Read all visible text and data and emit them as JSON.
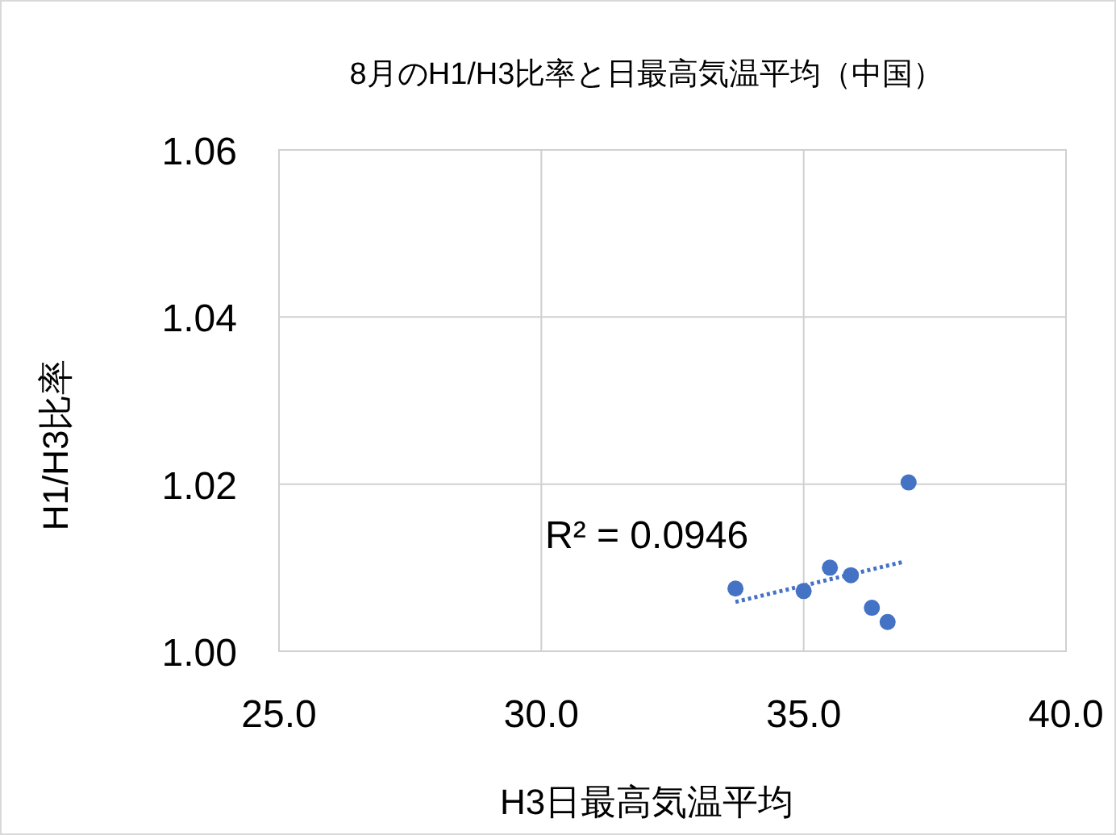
{
  "chart_data": {
    "type": "scatter",
    "title": "8月のH1/H3比率と日最高気温平均（中国）",
    "xlabel": "H3日最高気温平均",
    "ylabel": "H1/H3比率",
    "series": [
      {
        "type": "scatter",
        "color": "#4472c4",
        "marker": "circle",
        "x": [
          33.7,
          35.0,
          35.5,
          35.9,
          36.3,
          36.6,
          37.0
        ],
        "values": [
          1.0075,
          1.0072,
          1.01,
          1.0091,
          1.0052,
          1.0035,
          1.0202
        ]
      },
      {
        "type": "line",
        "color": "#4472c4",
        "line_style": "dotted",
        "marker": "none",
        "x": [
          33.7,
          36.9
        ],
        "values": [
          1.0059,
          1.0107
        ]
      }
    ],
    "annotations": [
      "R² = 0.0946"
    ],
    "xlim": [
      25,
      40
    ],
    "ylim": [
      1.0,
      1.06
    ],
    "xticks": [
      {
        "value": 25,
        "label": "25.0"
      },
      {
        "value": 30,
        "label": "30.0"
      },
      {
        "value": 35,
        "label": "35.0"
      },
      {
        "value": 40,
        "label": "40.0"
      }
    ],
    "yticks": [
      {
        "value": 1.0,
        "label": "1.00"
      },
      {
        "value": 1.02,
        "label": "1.02"
      },
      {
        "value": 1.04,
        "label": "1.04"
      },
      {
        "value": 1.06,
        "label": "1.06"
      }
    ],
    "grid": true
  }
}
